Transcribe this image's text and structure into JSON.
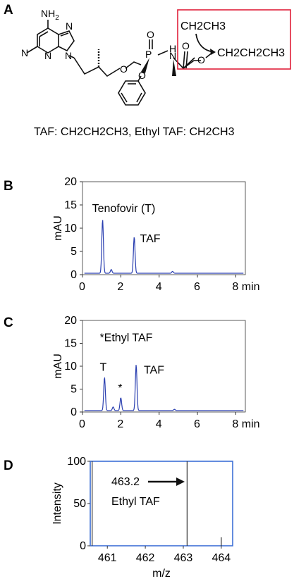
{
  "panels": {
    "a": {
      "letter": "A",
      "atoms": {
        "nh2": "NH",
        "nh2_sub": "2",
        "n": "N",
        "o": "O",
        "p": "P",
        "nh": "H"
      },
      "box": {
        "top_label": "CH2CH3",
        "bottom_label": "CH2CH2CH3",
        "color": "#e0203a"
      },
      "caption": "TAF: CH2CH2CH3, Ethyl TAF: CH2CH3"
    },
    "b": {
      "letter": "B"
    },
    "c": {
      "letter": "C"
    },
    "d": {
      "letter": "D"
    }
  },
  "chart_data": [
    {
      "type": "line",
      "panel": "B",
      "xlabel": "min",
      "ylabel": "mAU",
      "xlim": [
        0,
        8.5
      ],
      "ylim": [
        0,
        20
      ],
      "xticks": [
        0,
        2,
        4,
        6,
        8
      ],
      "xtick_labels": [
        "0",
        "2",
        "4",
        "6",
        "8 min"
      ],
      "yticks": [
        0,
        5,
        10,
        15,
        20
      ],
      "line_color": "#2a3fb0",
      "peaks": [
        {
          "x": 1.05,
          "height": 11.5,
          "label": "Tenofovir (T)"
        },
        {
          "x": 1.5,
          "height": 0.8,
          "label": ""
        },
        {
          "x": 2.7,
          "height": 7.8,
          "label": "TAF"
        },
        {
          "x": 4.7,
          "height": 0.4,
          "label": ""
        }
      ],
      "annotations": [
        {
          "text": "Tenofovir (T)",
          "x": 0.5,
          "y": 13.5
        },
        {
          "text": "TAF",
          "x": 3.0,
          "y": 7.0
        }
      ]
    },
    {
      "type": "line",
      "panel": "C",
      "xlabel": "min",
      "ylabel": "mAU",
      "xlim": [
        0,
        8.5
      ],
      "ylim": [
        0,
        20
      ],
      "xticks": [
        0,
        2,
        4,
        6,
        8
      ],
      "xtick_labels": [
        "0",
        "2",
        "4",
        "6",
        "8 min"
      ],
      "yticks": [
        0,
        5,
        10,
        15,
        20
      ],
      "line_color": "#2a3fb0",
      "peaks": [
        {
          "x": 1.15,
          "height": 7.2,
          "label": "T"
        },
        {
          "x": 1.6,
          "height": 0.8,
          "label": ""
        },
        {
          "x": 2.0,
          "height": 2.8,
          "label": "*"
        },
        {
          "x": 2.8,
          "height": 10.0,
          "label": "TAF"
        },
        {
          "x": 4.8,
          "height": 0.3,
          "label": ""
        }
      ],
      "annotations": [
        {
          "text": "*Ethyl TAF",
          "x": 0.9,
          "y": 15.5
        },
        {
          "text": "T",
          "x": 0.9,
          "y": 9.0
        },
        {
          "text": "*",
          "x": 1.85,
          "y": 4.5
        },
        {
          "text": "TAF",
          "x": 3.2,
          "y": 8.4
        }
      ]
    },
    {
      "type": "bar",
      "panel": "D",
      "xlabel": "m/z",
      "ylabel": "Intensity",
      "xlim": [
        460.55,
        464.3
      ],
      "ylim": [
        0,
        100
      ],
      "xticks": [
        461,
        462,
        463,
        464
      ],
      "xtick_labels": [
        "461",
        "462",
        "463",
        "464"
      ],
      "yticks": [
        0,
        50,
        100
      ],
      "frame_color": "#3d6fd6",
      "peaks": [
        {
          "mz": 460.6,
          "intensity": 100
        },
        {
          "mz": 463.1,
          "intensity": 100
        },
        {
          "mz": 464.0,
          "intensity": 10
        }
      ],
      "annotation": {
        "value": "463.2",
        "label": "Ethyl TAF"
      }
    }
  ]
}
